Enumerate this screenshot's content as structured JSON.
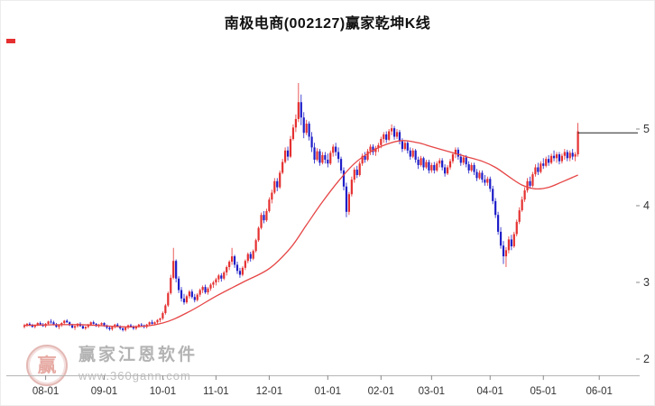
{
  "watermark": {
    "logo_char": "赢",
    "brand": "赢家江恩软件",
    "url": "www.360gann.com"
  },
  "chart_data": {
    "type": "candlestick",
    "title": "南极电商(002127)赢家乾坤K线",
    "stock_name": "南极电商",
    "stock_code": "002127",
    "legend": "red = up candle, blue = down candle, red curve = smoothed moving average, black horizontal line = latest price level",
    "ylim": [
      1.8,
      6.14
    ],
    "grid": false,
    "x_axis": {
      "tick_labels": [
        "08-01",
        "09-01",
        "10-01",
        "11-01",
        "12-01",
        "01-01",
        "02-01",
        "03-01",
        "04-01",
        "05-01",
        "06-01"
      ],
      "tick_indices": [
        8,
        30,
        52,
        72,
        92,
        114,
        134,
        153,
        175,
        195,
        216
      ]
    },
    "y_axis": {
      "tick_values": [
        5,
        4,
        3,
        2
      ],
      "side": "right"
    },
    "colors": {
      "up": "#e53030",
      "down": "#1e1ec8",
      "ma": "#e64545",
      "price_line": "#222222",
      "axis": "#b5b5b5",
      "label": "#333333"
    },
    "price_line": 4.95,
    "ma_points": [
      [
        0,
        2.44
      ],
      [
        20,
        2.45
      ],
      [
        40,
        2.42
      ],
      [
        52,
        2.47
      ],
      [
        62,
        2.62
      ],
      [
        72,
        2.82
      ],
      [
        82,
        3.0
      ],
      [
        92,
        3.18
      ],
      [
        100,
        3.45
      ],
      [
        106,
        3.75
      ],
      [
        112,
        4.05
      ],
      [
        118,
        4.32
      ],
      [
        124,
        4.55
      ],
      [
        130,
        4.7
      ],
      [
        136,
        4.8
      ],
      [
        142,
        4.85
      ],
      [
        148,
        4.82
      ],
      [
        153,
        4.77
      ],
      [
        160,
        4.7
      ],
      [
        166,
        4.64
      ],
      [
        172,
        4.58
      ],
      [
        177,
        4.5
      ],
      [
        182,
        4.38
      ],
      [
        187,
        4.27
      ],
      [
        192,
        4.22
      ],
      [
        197,
        4.24
      ],
      [
        202,
        4.31
      ],
      [
        208,
        4.4
      ]
    ],
    "candles": [
      [
        2.42,
        2.46,
        2.4,
        2.44
      ],
      [
        2.44,
        2.47,
        2.42,
        2.46
      ],
      [
        2.46,
        2.48,
        2.43,
        2.44
      ],
      [
        2.44,
        2.46,
        2.41,
        2.42
      ],
      [
        2.42,
        2.45,
        2.4,
        2.44
      ],
      [
        2.44,
        2.48,
        2.43,
        2.47
      ],
      [
        2.47,
        2.49,
        2.44,
        2.45
      ],
      [
        2.45,
        2.47,
        2.42,
        2.43
      ],
      [
        2.43,
        2.47,
        2.41,
        2.46
      ],
      [
        2.46,
        2.5,
        2.44,
        2.49
      ],
      [
        2.49,
        2.52,
        2.46,
        2.48
      ],
      [
        2.48,
        2.5,
        2.44,
        2.45
      ],
      [
        2.45,
        2.47,
        2.41,
        2.42
      ],
      [
        2.42,
        2.45,
        2.39,
        2.44
      ],
      [
        2.44,
        2.48,
        2.42,
        2.47
      ],
      [
        2.47,
        2.51,
        2.45,
        2.5
      ],
      [
        2.5,
        2.52,
        2.47,
        2.48
      ],
      [
        2.48,
        2.49,
        2.43,
        2.44
      ],
      [
        2.44,
        2.46,
        2.4,
        2.41
      ],
      [
        2.41,
        2.44,
        2.38,
        2.43
      ],
      [
        2.43,
        2.47,
        2.41,
        2.46
      ],
      [
        2.46,
        2.48,
        2.42,
        2.43
      ],
      [
        2.43,
        2.45,
        2.39,
        2.4
      ],
      [
        2.4,
        2.43,
        2.38,
        2.42
      ],
      [
        2.42,
        2.46,
        2.4,
        2.45
      ],
      [
        2.45,
        2.49,
        2.43,
        2.48
      ],
      [
        2.48,
        2.5,
        2.45,
        2.46
      ],
      [
        2.46,
        2.47,
        2.42,
        2.43
      ],
      [
        2.43,
        2.46,
        2.41,
        2.45
      ],
      [
        2.45,
        2.48,
        2.43,
        2.47
      ],
      [
        2.47,
        2.48,
        2.42,
        2.44
      ],
      [
        2.44,
        2.45,
        2.39,
        2.41
      ],
      [
        2.41,
        2.43,
        2.37,
        2.39
      ],
      [
        2.39,
        2.43,
        2.37,
        2.42
      ],
      [
        2.42,
        2.46,
        2.4,
        2.45
      ],
      [
        2.45,
        2.47,
        2.42,
        2.43
      ],
      [
        2.43,
        2.44,
        2.38,
        2.4
      ],
      [
        2.4,
        2.42,
        2.36,
        2.38
      ],
      [
        2.38,
        2.42,
        2.36,
        2.41
      ],
      [
        2.41,
        2.45,
        2.39,
        2.44
      ],
      [
        2.44,
        2.46,
        2.41,
        2.42
      ],
      [
        2.42,
        2.44,
        2.38,
        2.4
      ],
      [
        2.4,
        2.44,
        2.38,
        2.43
      ],
      [
        2.43,
        2.46,
        2.41,
        2.45
      ],
      [
        2.45,
        2.47,
        2.42,
        2.44
      ],
      [
        2.44,
        2.45,
        2.4,
        2.42
      ],
      [
        2.42,
        2.46,
        2.4,
        2.45
      ],
      [
        2.45,
        2.49,
        2.43,
        2.48
      ],
      [
        2.48,
        2.51,
        2.45,
        2.46
      ],
      [
        2.46,
        2.49,
        2.44,
        2.48
      ],
      [
        2.48,
        2.52,
        2.46,
        2.51
      ],
      [
        2.51,
        2.54,
        2.48,
        2.53
      ],
      [
        2.53,
        2.62,
        2.51,
        2.6
      ],
      [
        2.6,
        2.72,
        2.58,
        2.7
      ],
      [
        2.7,
        2.88,
        2.68,
        2.86
      ],
      [
        2.86,
        3.1,
        2.84,
        3.06
      ],
      [
        3.06,
        3.45,
        3.04,
        3.28
      ],
      [
        3.28,
        3.3,
        3.0,
        3.05
      ],
      [
        3.05,
        3.08,
        2.86,
        2.9
      ],
      [
        2.9,
        2.94,
        2.75,
        2.79
      ],
      [
        2.79,
        2.85,
        2.71,
        2.74
      ],
      [
        2.74,
        2.84,
        2.72,
        2.82
      ],
      [
        2.82,
        2.9,
        2.79,
        2.88
      ],
      [
        2.88,
        2.91,
        2.79,
        2.81
      ],
      [
        2.81,
        2.85,
        2.74,
        2.77
      ],
      [
        2.77,
        2.86,
        2.75,
        2.84
      ],
      [
        2.84,
        2.92,
        2.81,
        2.9
      ],
      [
        2.9,
        2.96,
        2.86,
        2.94
      ],
      [
        2.94,
        2.97,
        2.85,
        2.87
      ],
      [
        2.87,
        2.94,
        2.84,
        2.92
      ],
      [
        2.92,
        2.99,
        2.89,
        2.97
      ],
      [
        2.97,
        3.02,
        2.93,
        3.0
      ],
      [
        3.0,
        3.06,
        2.96,
        3.04
      ],
      [
        3.04,
        3.11,
        3.0,
        3.09
      ],
      [
        3.09,
        3.12,
        3.01,
        3.05
      ],
      [
        3.05,
        3.15,
        3.03,
        3.13
      ],
      [
        3.13,
        3.22,
        3.09,
        3.2
      ],
      [
        3.2,
        3.29,
        3.16,
        3.27
      ],
      [
        3.27,
        3.45,
        3.23,
        3.34
      ],
      [
        3.34,
        3.36,
        3.19,
        3.23
      ],
      [
        3.23,
        3.27,
        3.11,
        3.15
      ],
      [
        3.15,
        3.19,
        3.06,
        3.1
      ],
      [
        3.1,
        3.21,
        3.08,
        3.19
      ],
      [
        3.19,
        3.3,
        3.16,
        3.28
      ],
      [
        3.28,
        3.39,
        3.25,
        3.37
      ],
      [
        3.37,
        3.4,
        3.27,
        3.31
      ],
      [
        3.31,
        3.43,
        3.29,
        3.41
      ],
      [
        3.41,
        3.57,
        3.39,
        3.55
      ],
      [
        3.55,
        3.73,
        3.53,
        3.71
      ],
      [
        3.71,
        3.91,
        3.69,
        3.88
      ],
      [
        3.88,
        3.93,
        3.77,
        3.81
      ],
      [
        3.81,
        3.96,
        3.79,
        3.93
      ],
      [
        3.93,
        4.11,
        3.91,
        4.08
      ],
      [
        4.08,
        4.21,
        4.03,
        4.17
      ],
      [
        4.17,
        4.36,
        4.15,
        4.32
      ],
      [
        4.32,
        4.36,
        4.19,
        4.24
      ],
      [
        4.24,
        4.46,
        4.22,
        4.43
      ],
      [
        4.43,
        4.61,
        4.41,
        4.57
      ],
      [
        4.57,
        4.76,
        4.55,
        4.72
      ],
      [
        4.72,
        4.77,
        4.59,
        4.64
      ],
      [
        4.64,
        4.91,
        4.62,
        4.87
      ],
      [
        4.87,
        5.06,
        4.85,
        5.02
      ],
      [
        5.02,
        5.19,
        4.96,
        5.13
      ],
      [
        5.13,
        5.6,
        5.09,
        5.35
      ],
      [
        5.35,
        5.45,
        5.05,
        5.15
      ],
      [
        5.15,
        5.22,
        4.88,
        4.95
      ],
      [
        4.95,
        5.12,
        4.92,
        5.07
      ],
      [
        5.07,
        5.1,
        4.85,
        4.9
      ],
      [
        4.9,
        4.96,
        4.7,
        4.76
      ],
      [
        4.76,
        4.82,
        4.55,
        4.6
      ],
      [
        4.6,
        4.75,
        4.58,
        4.71
      ],
      [
        4.71,
        4.74,
        4.52,
        4.56
      ],
      [
        4.56,
        4.7,
        4.54,
        4.66
      ],
      [
        4.66,
        4.7,
        4.55,
        4.6
      ],
      [
        4.6,
        4.68,
        4.5,
        4.55
      ],
      [
        4.55,
        4.72,
        4.53,
        4.69
      ],
      [
        4.69,
        4.8,
        4.64,
        4.77
      ],
      [
        4.77,
        4.82,
        4.65,
        4.7
      ],
      [
        4.7,
        4.76,
        4.56,
        4.61
      ],
      [
        4.61,
        4.64,
        4.42,
        4.46
      ],
      [
        4.46,
        4.5,
        4.2,
        4.25
      ],
      [
        4.25,
        4.3,
        3.85,
        3.92
      ],
      [
        3.92,
        4.18,
        3.88,
        4.15
      ],
      [
        4.15,
        4.38,
        4.12,
        4.34
      ],
      [
        4.34,
        4.5,
        4.3,
        4.47
      ],
      [
        4.47,
        4.52,
        4.36,
        4.4
      ],
      [
        4.4,
        4.58,
        4.38,
        4.55
      ],
      [
        4.55,
        4.68,
        4.52,
        4.65
      ],
      [
        4.65,
        4.7,
        4.56,
        4.6
      ],
      [
        4.6,
        4.74,
        4.58,
        4.71
      ],
      [
        4.71,
        4.8,
        4.66,
        4.77
      ],
      [
        4.77,
        4.8,
        4.66,
        4.7
      ],
      [
        4.7,
        4.78,
        4.65,
        4.75
      ],
      [
        4.75,
        4.82,
        4.7,
        4.79
      ],
      [
        4.79,
        4.9,
        4.75,
        4.87
      ],
      [
        4.87,
        4.96,
        4.82,
        4.93
      ],
      [
        4.93,
        4.97,
        4.82,
        4.86
      ],
      [
        4.86,
        5.0,
        4.84,
        4.97
      ],
      [
        4.97,
        5.06,
        4.92,
        5.01
      ],
      [
        5.01,
        5.04,
        4.86,
        4.9
      ],
      [
        4.9,
        5.0,
        4.87,
        4.96
      ],
      [
        4.96,
        4.99,
        4.8,
        4.84
      ],
      [
        4.84,
        4.88,
        4.7,
        4.74
      ],
      [
        4.74,
        4.85,
        4.72,
        4.82
      ],
      [
        4.82,
        4.85,
        4.68,
        4.72
      ],
      [
        4.72,
        4.76,
        4.6,
        4.64
      ],
      [
        4.64,
        4.75,
        4.62,
        4.72
      ],
      [
        4.72,
        4.74,
        4.56,
        4.6
      ],
      [
        4.6,
        4.64,
        4.48,
        4.53
      ],
      [
        4.53,
        4.65,
        4.51,
        4.62
      ],
      [
        4.62,
        4.64,
        4.46,
        4.5
      ],
      [
        4.5,
        4.6,
        4.48,
        4.57
      ],
      [
        4.57,
        4.6,
        4.42,
        4.46
      ],
      [
        4.46,
        4.56,
        4.43,
        4.53
      ],
      [
        4.53,
        4.57,
        4.42,
        4.46
      ],
      [
        4.46,
        4.58,
        4.44,
        4.55
      ],
      [
        4.55,
        4.62,
        4.5,
        4.59
      ],
      [
        4.59,
        4.62,
        4.46,
        4.5
      ],
      [
        4.5,
        4.54,
        4.38,
        4.42
      ],
      [
        4.42,
        4.53,
        4.4,
        4.5
      ],
      [
        4.5,
        4.61,
        4.47,
        4.58
      ],
      [
        4.58,
        4.7,
        4.55,
        4.67
      ],
      [
        4.67,
        4.76,
        4.62,
        4.73
      ],
      [
        4.73,
        4.76,
        4.6,
        4.64
      ],
      [
        4.64,
        4.68,
        4.52,
        4.56
      ],
      [
        4.56,
        4.66,
        4.53,
        4.63
      ],
      [
        4.63,
        4.66,
        4.5,
        4.54
      ],
      [
        4.54,
        4.58,
        4.42,
        4.46
      ],
      [
        4.46,
        4.56,
        4.44,
        4.53
      ],
      [
        4.53,
        4.56,
        4.4,
        4.44
      ],
      [
        4.44,
        4.48,
        4.32,
        4.36
      ],
      [
        4.36,
        4.46,
        4.34,
        4.43
      ],
      [
        4.43,
        4.46,
        4.3,
        4.34
      ],
      [
        4.34,
        4.4,
        4.26,
        4.3
      ],
      [
        4.3,
        4.38,
        4.26,
        4.35
      ],
      [
        4.35,
        4.38,
        4.18,
        4.22
      ],
      [
        4.22,
        4.26,
        4.02,
        4.06
      ],
      [
        4.06,
        4.1,
        3.84,
        3.88
      ],
      [
        3.88,
        3.92,
        3.62,
        3.66
      ],
      [
        3.66,
        3.72,
        3.44,
        3.48
      ],
      [
        3.48,
        3.54,
        3.24,
        3.34
      ],
      [
        3.34,
        3.46,
        3.2,
        3.42
      ],
      [
        3.42,
        3.6,
        3.38,
        3.56
      ],
      [
        3.56,
        3.62,
        3.42,
        3.47
      ],
      [
        3.47,
        3.66,
        3.45,
        3.63
      ],
      [
        3.63,
        3.82,
        3.6,
        3.79
      ],
      [
        3.79,
        3.98,
        3.76,
        3.94
      ],
      [
        3.94,
        4.12,
        3.92,
        4.08
      ],
      [
        4.08,
        4.24,
        4.05,
        4.2
      ],
      [
        4.2,
        4.36,
        4.17,
        4.32
      ],
      [
        4.32,
        4.38,
        4.22,
        4.26
      ],
      [
        4.26,
        4.44,
        4.24,
        4.41
      ],
      [
        4.41,
        4.54,
        4.38,
        4.5
      ],
      [
        4.5,
        4.56,
        4.4,
        4.44
      ],
      [
        4.44,
        4.58,
        4.42,
        4.55
      ],
      [
        4.55,
        4.62,
        4.48,
        4.52
      ],
      [
        4.52,
        4.64,
        4.5,
        4.61
      ],
      [
        4.61,
        4.66,
        4.52,
        4.56
      ],
      [
        4.56,
        4.68,
        4.54,
        4.65
      ],
      [
        4.65,
        4.72,
        4.58,
        4.62
      ],
      [
        4.62,
        4.7,
        4.56,
        4.67
      ],
      [
        4.67,
        4.7,
        4.54,
        4.58
      ],
      [
        4.58,
        4.68,
        4.55,
        4.65
      ],
      [
        4.65,
        4.74,
        4.6,
        4.7
      ],
      [
        4.7,
        4.73,
        4.58,
        4.62
      ],
      [
        4.62,
        4.72,
        4.58,
        4.69
      ],
      [
        4.69,
        4.74,
        4.6,
        4.64
      ],
      [
        4.64,
        4.7,
        4.58,
        4.67
      ],
      [
        4.67,
        5.08,
        4.64,
        4.97
      ]
    ]
  }
}
